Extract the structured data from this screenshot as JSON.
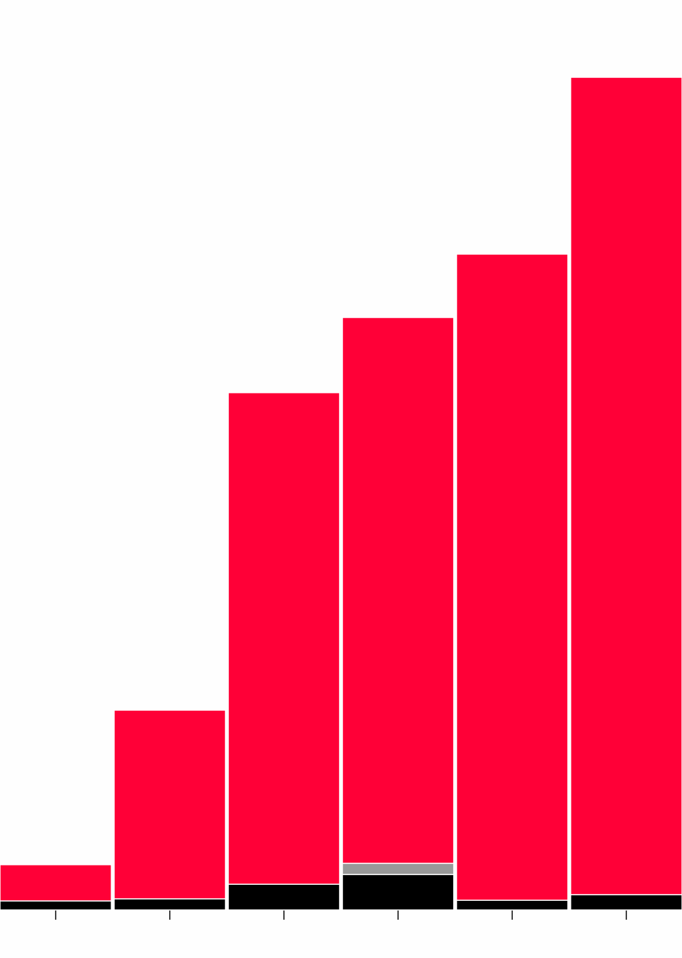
{
  "chart_data": {
    "type": "stacked-bar",
    "categories": [
      null,
      null,
      null,
      null,
      null,
      null
    ],
    "series": [
      {
        "color": "#000000",
        "values": [
          13,
          16,
          37,
          51,
          14,
          22
        ]
      },
      {
        "color": "#999999",
        "values": [
          0,
          0,
          0,
          16,
          0,
          0
        ]
      },
      {
        "color": "#ff0037",
        "values": [
          52,
          271,
          706,
          784,
          928,
          1174
        ]
      }
    ],
    "ylim": [
      0,
      1200
    ]
  }
}
